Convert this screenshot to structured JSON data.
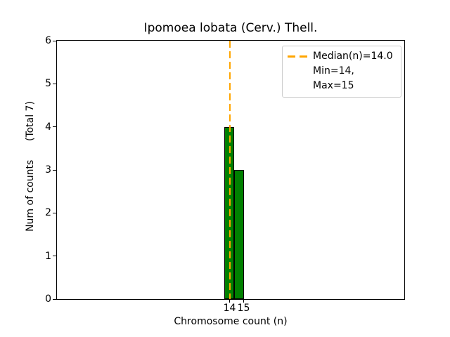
{
  "title": "Ipomoea lobata (Cerv.) Thell.",
  "axes": {
    "xlabel": "Chromosome count (n)",
    "ylabel": "Num of counts      (Total 7)",
    "x_tick_labels": [
      "14",
      "15"
    ],
    "y_tick_labels": [
      "0",
      "1",
      "2",
      "3",
      "4",
      "5",
      "6"
    ]
  },
  "legend": {
    "median_label": "Median(n)=14.0",
    "minmax_label": "Min=14, Max=15"
  },
  "colors": {
    "bar_fill": "#008000",
    "bar_edge": "#000000",
    "median_line": "#FFA500",
    "legend_border": "#cccccc",
    "axis": "#000000",
    "background": "#ffffff"
  },
  "chart_data": {
    "type": "bar",
    "title": "Ipomoea lobata (Cerv.) Thell.",
    "xlabel": "Chromosome count (n)",
    "ylabel": "Num of counts      (Total 7)",
    "categories": [
      14,
      15
    ],
    "values": [
      4,
      3
    ],
    "total_counts": 7,
    "median_n": 14.0,
    "min_n": 14,
    "max_n": 15,
    "ylim": [
      0,
      6
    ],
    "y_ticks": [
      0,
      1,
      2,
      3,
      4,
      5,
      6
    ],
    "grid": false,
    "legend_position": "upper right",
    "bar_style": "histogram, adjacent bins, green fill with black edge",
    "median_line_style": "vertical orange dashed line at n=14"
  }
}
